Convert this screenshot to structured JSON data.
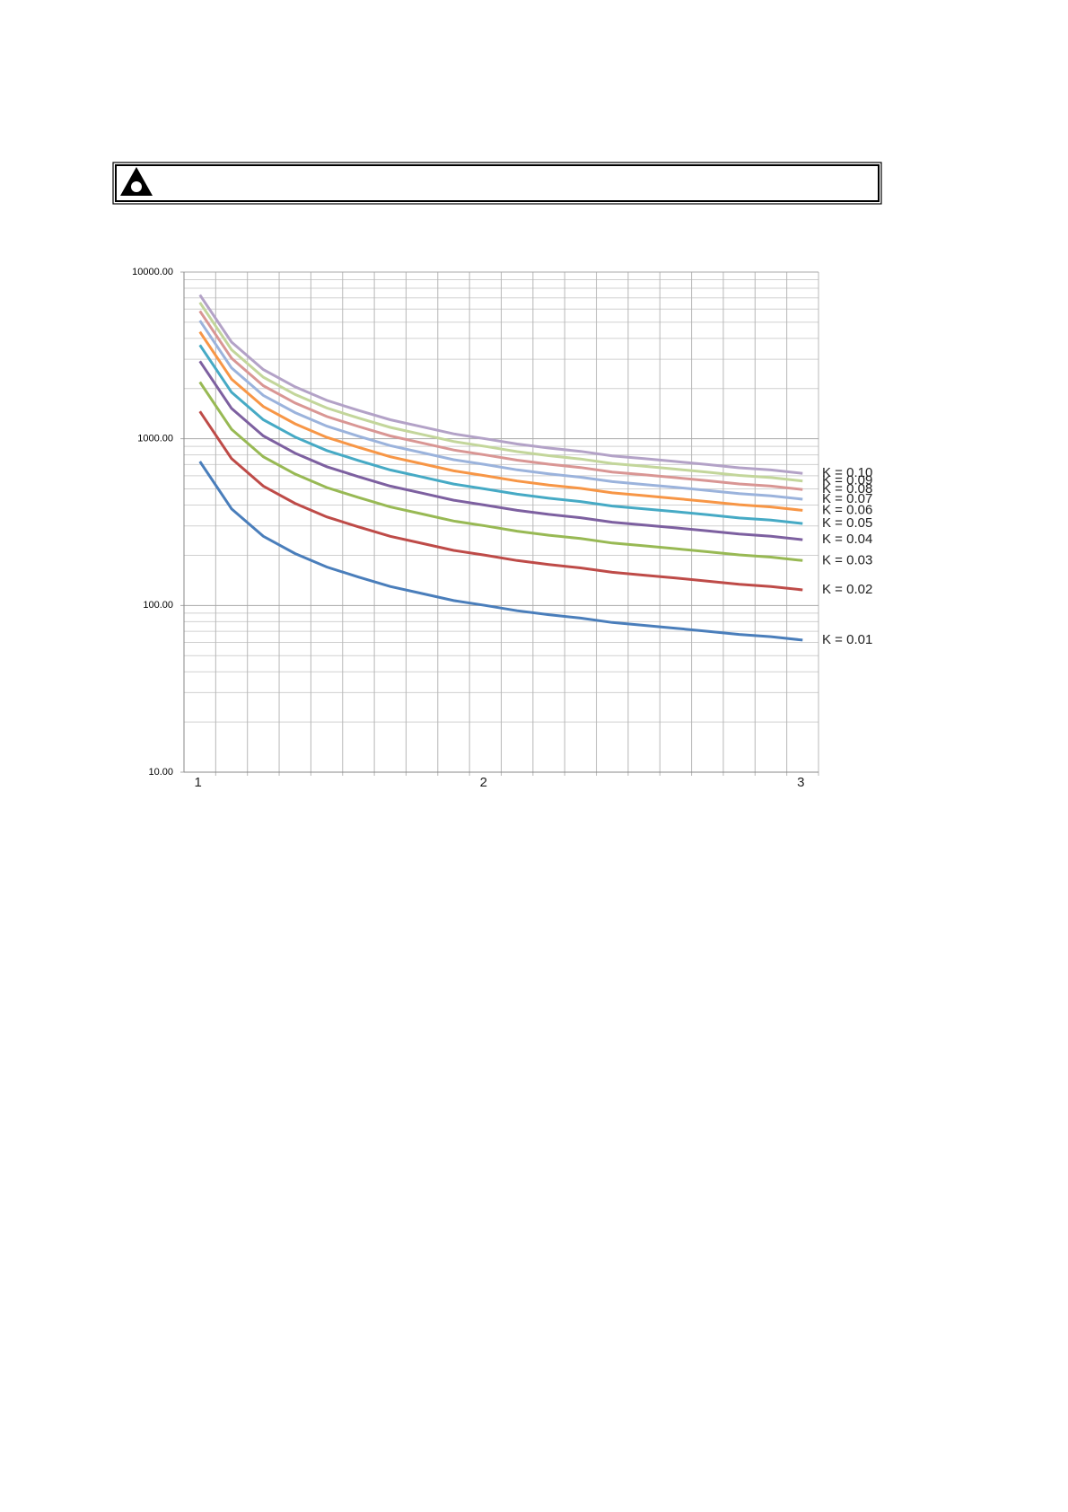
{
  "chart_data": {
    "type": "line",
    "log_y": true,
    "grid": true,
    "minor_grid": true,
    "categories": [
      "1",
      null,
      null,
      null,
      null,
      null,
      null,
      null,
      null,
      "2",
      null,
      null,
      null,
      null,
      null,
      null,
      null,
      null,
      null,
      "3"
    ],
    "ylim": [
      10,
      10000
    ],
    "yticks": [
      {
        "value": 10,
        "label": "10.00"
      },
      {
        "value": 100,
        "label": "100.00"
      },
      {
        "value": 1000,
        "label": "1000.00"
      },
      {
        "value": 10000,
        "label": "10000.00"
      }
    ],
    "series": [
      {
        "name": "K = 0.01",
        "color": "#4a7ebb",
        "values": [
          730,
          380,
          260,
          205,
          170,
          148,
          130,
          118,
          107,
          100,
          93,
          88,
          84,
          79,
          76,
          73,
          70,
          67,
          65,
          62
        ]
      },
      {
        "name": "K = 0.02",
        "color": "#be4b48",
        "values": [
          1460,
          760,
          520,
          410,
          340,
          296,
          260,
          236,
          214,
          200,
          186,
          176,
          168,
          158,
          152,
          146,
          140,
          134,
          130,
          124
        ]
      },
      {
        "name": "K = 0.03",
        "color": "#98b954",
        "values": [
          2190,
          1140,
          780,
          615,
          510,
          444,
          390,
          354,
          321,
          300,
          279,
          264,
          252,
          237,
          228,
          219,
          210,
          201,
          195,
          186
        ]
      },
      {
        "name": "K = 0.04",
        "color": "#7d60a0",
        "values": [
          2920,
          1520,
          1040,
          820,
          680,
          592,
          520,
          472,
          428,
          400,
          372,
          352,
          336,
          316,
          304,
          292,
          280,
          268,
          260,
          248
        ]
      },
      {
        "name": "K = 0.05",
        "color": "#46aac5",
        "values": [
          3650,
          1900,
          1300,
          1025,
          850,
          740,
          650,
          590,
          535,
          500,
          465,
          440,
          420,
          395,
          380,
          365,
          350,
          335,
          325,
          310
        ]
      },
      {
        "name": "K = 0.06",
        "color": "#f79646",
        "values": [
          4380,
          2280,
          1560,
          1230,
          1020,
          888,
          780,
          708,
          642,
          600,
          558,
          528,
          504,
          474,
          456,
          438,
          420,
          402,
          390,
          372
        ]
      },
      {
        "name": "K = 0.07",
        "color": "#9bb3dc",
        "values": [
          5110,
          2660,
          1820,
          1435,
          1190,
          1036,
          910,
          826,
          749,
          700,
          651,
          616,
          588,
          553,
          532,
          511,
          490,
          469,
          455,
          434
        ]
      },
      {
        "name": "K = 0.08",
        "color": "#d99694",
        "values": [
          5840,
          3040,
          2080,
          1640,
          1360,
          1184,
          1040,
          944,
          856,
          800,
          744,
          704,
          672,
          632,
          608,
          584,
          560,
          536,
          520,
          496
        ]
      },
      {
        "name": "K = 0.09",
        "color": "#c3d69b",
        "values": [
          6570,
          3420,
          2340,
          1845,
          1530,
          1332,
          1170,
          1062,
          963,
          900,
          837,
          792,
          756,
          711,
          684,
          657,
          630,
          603,
          585,
          558
        ]
      },
      {
        "name": "K = 0.10",
        "color": "#b3a2c7",
        "values": [
          7300,
          3800,
          2600,
          2050,
          1700,
          1480,
          1300,
          1180,
          1070,
          1000,
          930,
          880,
          840,
          790,
          760,
          730,
          700,
          670,
          650,
          620
        ]
      }
    ]
  }
}
